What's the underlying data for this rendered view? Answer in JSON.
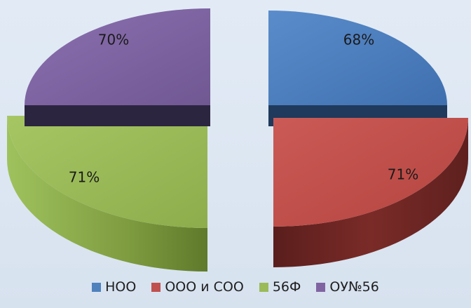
{
  "chart_data": {
    "type": "pie",
    "variant": "exploded-3d-quarters",
    "categories": [
      "НОО",
      "ООО и СОО",
      "56Ф",
      "ОУ№56"
    ],
    "values": [
      68,
      71,
      71,
      70
    ],
    "labels": [
      "68%",
      "71%",
      "71%",
      "70%"
    ],
    "colors": [
      "#4f81bd",
      "#c0504d",
      "#9bbb59",
      "#8064a2"
    ],
    "legend_position": "bottom",
    "title": ""
  }
}
